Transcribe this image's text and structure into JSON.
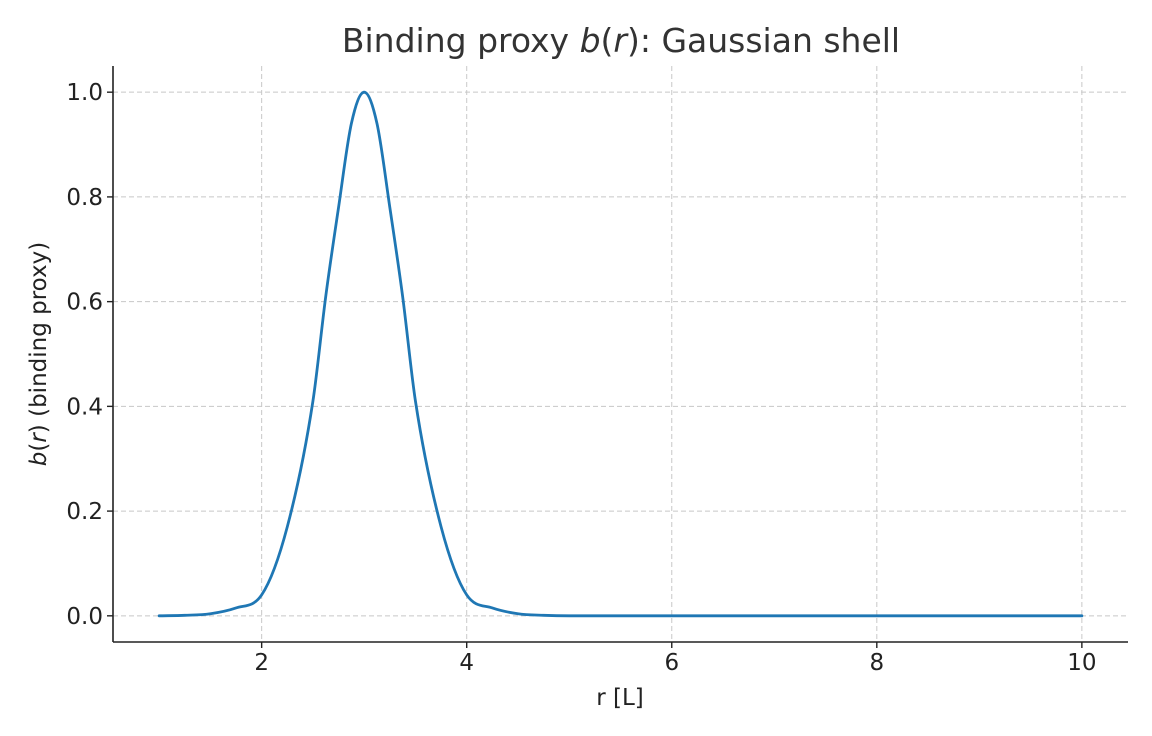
{
  "chart_data": {
    "type": "line",
    "title": {
      "main": "Binding proxy ",
      "math": "b",
      "paren_open": "(",
      "math_var": "r",
      "paren_close": ")",
      "rest": ": Gaussian shell"
    },
    "xlabel": "r [L]",
    "ylabel": {
      "math": "b",
      "paren_open": "(",
      "math_var": "r",
      "paren_close": ")",
      "rest": " (binding proxy)"
    },
    "xlim": [
      0.55,
      10.45
    ],
    "ylim": [
      -0.05,
      1.05
    ],
    "xticks": [
      2,
      4,
      6,
      8,
      10
    ],
    "xtick_labels": [
      "2",
      "4",
      "6",
      "8",
      "10"
    ],
    "yticks": [
      0.0,
      0.2,
      0.4,
      0.6,
      0.8,
      1.0
    ],
    "ytick_labels": [
      "0.0",
      "0.2",
      "0.4",
      "0.6",
      "0.8",
      "1.0"
    ],
    "grid": true,
    "series": [
      {
        "color": "#1f77b4",
        "x": [
          1.0,
          1.25,
          1.5,
          1.75,
          2.0,
          2.25,
          2.5,
          2.625,
          2.75,
          2.875,
          3.0,
          3.125,
          3.25,
          3.375,
          3.5,
          3.75,
          4.0,
          4.25,
          4.5,
          4.75,
          5.0,
          6.0,
          7.0,
          8.0,
          9.0,
          10.0
        ],
        "y": [
          0.0,
          0.001,
          0.004,
          0.015,
          0.04,
          0.17,
          0.41,
          0.61,
          0.78,
          0.94,
          1.0,
          0.94,
          0.78,
          0.61,
          0.41,
          0.17,
          0.04,
          0.015,
          0.004,
          0.001,
          0.0,
          0.0,
          0.0,
          0.0,
          0.0,
          0.0
        ]
      }
    ]
  }
}
